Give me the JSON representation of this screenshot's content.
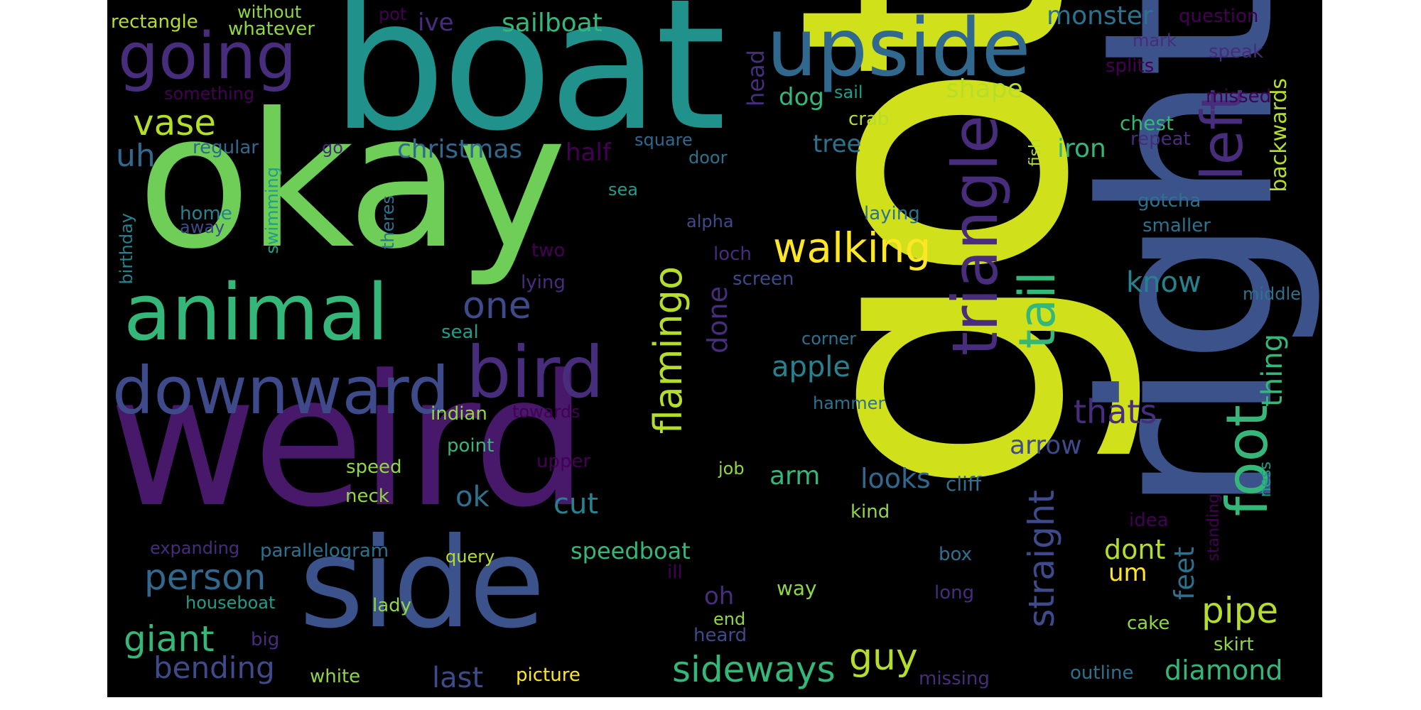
{
  "palette": {
    "background": "#000000",
    "page": "#ffffff",
    "w01": "#d0e11c",
    "w02": "#3b528b",
    "w03": "#21918c",
    "w04": "#6ece58",
    "w05": "#48186a",
    "w06": "#35b779",
    "w07": "#fde725",
    "w08": "#31688e",
    "w09": "#440154",
    "w10": "#b5de2b",
    "w11": "#26828e",
    "w12": "#1f9e89",
    "w13": "#472d7b",
    "w14": "#90d743",
    "w15": "#3e4a89",
    "w16": "#2c728e"
  },
  "words": {
    "got": "got",
    "right": "right",
    "boat": "boat",
    "okay": "okay",
    "weird": "weird",
    "side": "side",
    "upside": "upside",
    "going": "going",
    "animal": "animal",
    "downward": "downward",
    "bird": "bird",
    "triangle": "triangle",
    "left": "left",
    "foot": "foot",
    "tail": "tail",
    "walking": "walking",
    "flamingo": "flamingo",
    "one": "one",
    "vase": "vase",
    "person": "person",
    "sideways": "sideways",
    "straight": "straight",
    "pipe": "pipe",
    "guy": "guy",
    "giant": "giant",
    "bending": "bending",
    "christmas": "christmas",
    "sailboat": "sailboat",
    "monster": "monster",
    "shape": "shape",
    "looks": "looks",
    "speedboat": "speedboat",
    "last": "last",
    "diamond": "diamond",
    "apple": "apple",
    "thats": "thats",
    "thing": "thing",
    "know": "know",
    "arrow": "arrow",
    "cut": "cut",
    "dont": "dont",
    "uh": "uh",
    "ok": "ok",
    "arm": "arm",
    "done": "done",
    "feet": "feet",
    "half": "half",
    "tree": "tree",
    "iron": "iron",
    "ive": "ive",
    "dog": "dog",
    "head": "head",
    "backwards": "backwards",
    "um": "um",
    "oh": "oh",
    "rectangle": "rectangle",
    "without": "without",
    "whatever": "whatever",
    "pot": "pot",
    "something": "something",
    "question": "question",
    "mark": "mark",
    "speak": "speak",
    "splits": "splits",
    "missed": "missed",
    "chest": "chest",
    "repeat": "repeat",
    "regular": "regular",
    "square": "square",
    "door": "door",
    "crab": "crab",
    "sail": "sail",
    "go": "go",
    "fish": "fish",
    "home": "home",
    "away": "away",
    "swimming": "swimming",
    "birthday": "birthday",
    "theres": "theres",
    "sea": "sea",
    "alpha": "alpha",
    "loch": "loch",
    "laying": "laying",
    "gotcha": "gotcha",
    "smaller": "smaller",
    "two": "two",
    "lying": "lying",
    "screen": "screen",
    "middle": "middle",
    "seal": "seal",
    "corner": "corner",
    "hammer": "hammer",
    "indian": "indian",
    "towards": "towards",
    "point": "point",
    "upper": "upper",
    "speed": "speed",
    "job": "job",
    "cliff": "cliff",
    "ness": "ness",
    "standing": "standing",
    "neck": "neck",
    "kind": "kind",
    "idea": "idea",
    "expanding": "expanding",
    "parallelogram": "parallelogram",
    "query": "query",
    "box": "box",
    "ill": "ill",
    "way": "way",
    "houseboat": "houseboat",
    "lady": "lady",
    "long": "long",
    "big": "big",
    "end": "end",
    "heard": "heard",
    "cake": "cake",
    "skirt": "skirt",
    "white": "white",
    "picture": "picture",
    "missing": "missing",
    "outline": "outline"
  }
}
